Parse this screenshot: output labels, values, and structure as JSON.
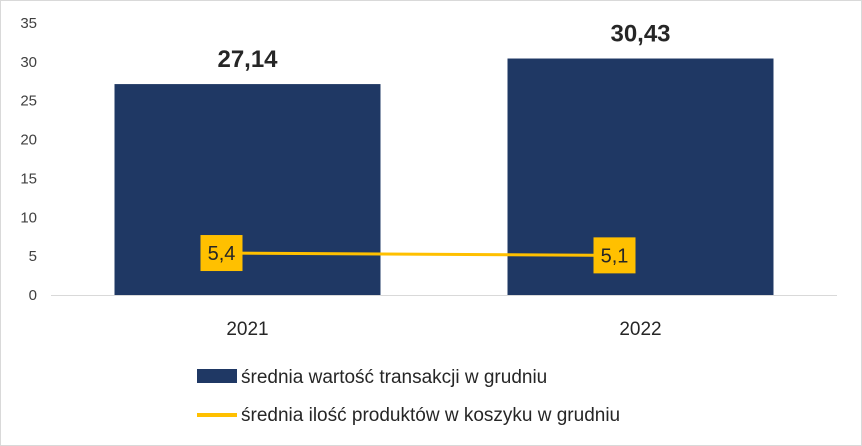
{
  "chart_data": {
    "type": "bar",
    "categories": [
      "2021",
      "2022"
    ],
    "ylim": [
      0,
      35
    ],
    "yticks": [
      0,
      5,
      10,
      15,
      20,
      25,
      30,
      35
    ],
    "grid": false,
    "legend_position": "bottom",
    "series": [
      {
        "name": "średnia wartość transakcji w grudniu",
        "type": "bar",
        "color": "#1f3864",
        "values": [
          27.14,
          30.43
        ],
        "labels": [
          "27,14",
          "30,43"
        ]
      },
      {
        "name": "średnia ilość produktów w koszyku w grudniu",
        "type": "line",
        "color": "#ffc000",
        "values": [
          5.4,
          5.1
        ],
        "labels": [
          "5,4",
          "5,1"
        ]
      }
    ]
  }
}
